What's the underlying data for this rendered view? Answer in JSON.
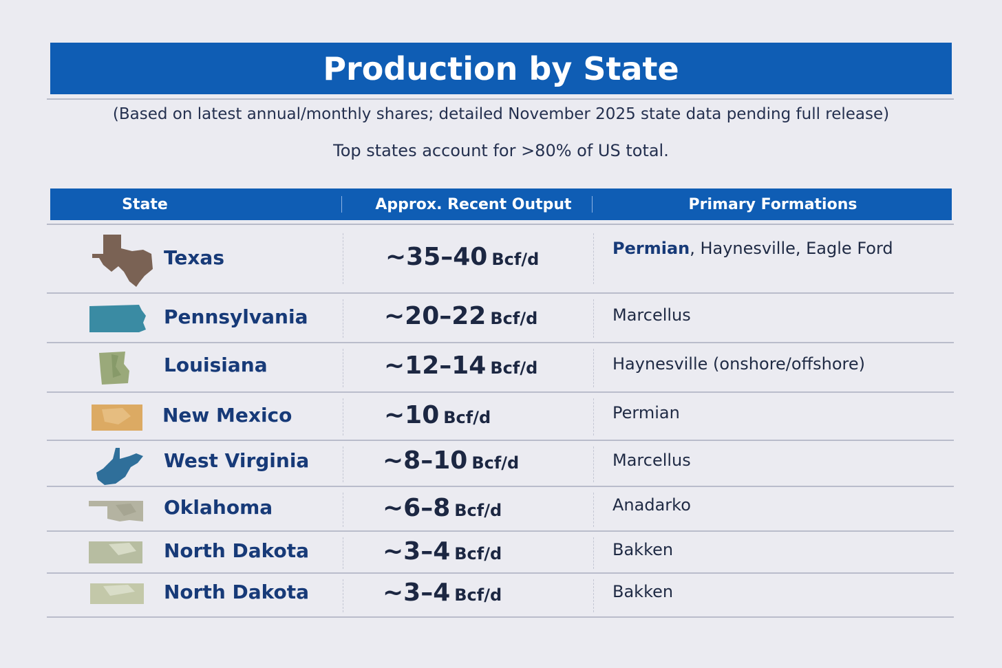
{
  "title": "Production by State",
  "subtitle": "(Based on latest annual/monthly shares; detailed November 2025 state data pending full release)",
  "summary": "Top states account for >80% of US total.",
  "table": {
    "headers": [
      "State",
      "Approx. Recent Output",
      "Primary Formations"
    ],
    "rows": [
      {
        "state": "Texas",
        "output_value": "~35–40",
        "output_unit": "Bcf/d",
        "formation_bold": "Permian",
        "formation_rest": ", Haynesville, Eagle Ford",
        "map_icon": "texas-map-icon",
        "map_color": "#7a6254"
      },
      {
        "state": "Pennsylvania",
        "output_value": "~20–22",
        "output_unit": "Bcf/d",
        "formation_bold": "",
        "formation_rest": "Marcellus",
        "map_icon": "pennsylvania-map-icon",
        "map_color": "#3a8ba3"
      },
      {
        "state": "Louisiana",
        "output_value": "~12–14",
        "output_unit": "Bcf/d",
        "formation_bold": "",
        "formation_rest": "Haynesville (onshore/offshore)",
        "map_icon": "louisiana-map-icon",
        "map_color": "#9aa97a"
      },
      {
        "state": "New Mexico",
        "output_value": "~10",
        "output_unit": "Bcf/d",
        "formation_bold": "",
        "formation_rest": "Permian",
        "map_icon": "new-mexico-map-icon",
        "map_color": "#dcaa63"
      },
      {
        "state": "West Virginia",
        "output_value": "~8–10",
        "output_unit": "Bcf/d",
        "formation_bold": "",
        "formation_rest": "Marcellus",
        "map_icon": "west-virginia-map-icon",
        "map_color": "#2f6f9a"
      },
      {
        "state": "Oklahoma",
        "output_value": "~6–8",
        "output_unit": "Bcf/d",
        "formation_bold": "",
        "formation_rest": "Anadarko",
        "map_icon": "oklahoma-map-icon",
        "map_color": "#b4b3a1"
      },
      {
        "state": "North Dakota",
        "output_value": "~3–4",
        "output_unit": "Bcf/d",
        "formation_bold": "",
        "formation_rest": "Bakken",
        "map_icon": "north-dakota-map-icon",
        "map_color": "#b7bda1"
      },
      {
        "state": "North Dakota",
        "output_value": "~3–4",
        "output_unit": "Bcf/d",
        "formation_bold": "",
        "formation_rest": "Bakken",
        "map_icon": "north-dakota-map-icon",
        "map_color": "#c3c8a9"
      }
    ]
  }
}
